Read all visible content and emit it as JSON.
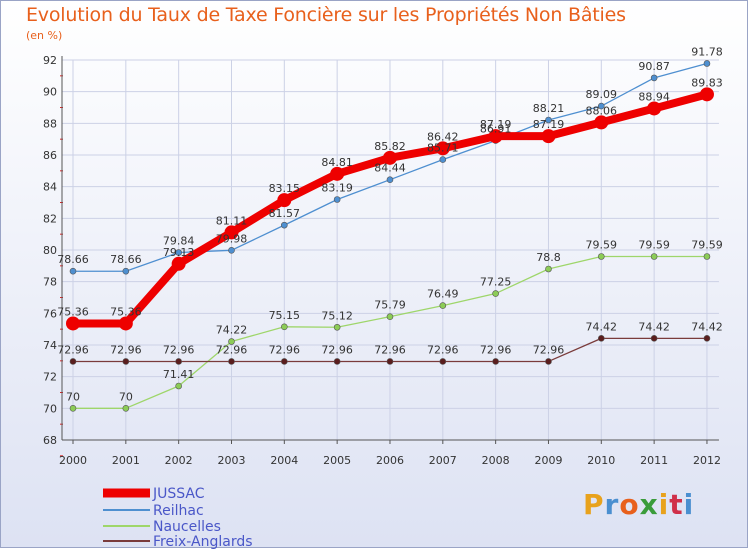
{
  "chart_data": {
    "type": "line",
    "title": "Evolution du Taux de Taxe Foncière sur les Propriétés Non Bâties",
    "subtitle": "(en %)",
    "categories": [
      "2000",
      "2001",
      "2002",
      "2003",
      "2004",
      "2005",
      "2006",
      "2007",
      "2008",
      "2009",
      "2010",
      "2011",
      "2012"
    ],
    "ylim": [
      68,
      92
    ],
    "yticks": [
      68,
      70,
      72,
      74,
      76,
      78,
      80,
      82,
      84,
      86,
      88,
      90,
      92
    ],
    "series": [
      {
        "name": "Reilhac",
        "color": "#4e8fd0",
        "point_color": "#4e8fd0",
        "values": [
          78.66,
          78.66,
          79.84,
          79.98,
          81.57,
          83.19,
          84.44,
          85.71,
          86.91,
          88.21,
          89.09,
          90.87,
          91.78
        ],
        "labels": [
          "78.66",
          "78.66",
          "79.84",
          "79.98",
          "81.57",
          "83.19",
          "84.44",
          "85.71",
          "86.91",
          "88.21",
          "89.09",
          "90.87",
          "91.78"
        ],
        "width": 1.3,
        "marker": 3
      },
      {
        "name": "Naucelles",
        "color": "#9ed66a",
        "point_color": "#8ccc57",
        "values": [
          70,
          70,
          71.41,
          74.22,
          75.15,
          75.12,
          75.79,
          76.49,
          77.25,
          78.8,
          79.59,
          79.59,
          79.59
        ],
        "labels": [
          "70",
          "70",
          "71.41",
          "74.22",
          "75.15",
          "75.12",
          "75.79",
          "76.49",
          "77.25",
          "78.8",
          "79.59",
          "79.59",
          "79.59"
        ],
        "width": 1.3,
        "marker": 3
      },
      {
        "name": "Freix-Anglards",
        "color": "#7a3b3b",
        "point_color": "#5a1e1e",
        "values": [
          72.96,
          72.96,
          72.96,
          72.96,
          72.96,
          72.96,
          72.96,
          72.96,
          72.96,
          72.96,
          74.42,
          74.42,
          74.42
        ],
        "labels": [
          "72.96",
          "72.96",
          "72.96",
          "72.96",
          "72.96",
          "72.96",
          "72.96",
          "72.96",
          "72.96",
          "72.96",
          "74.42",
          "74.42",
          "74.42"
        ],
        "width": 1.3,
        "marker": 3
      },
      {
        "name": "JUSSAC",
        "color": "#ee0000",
        "point_color": "#ee0000",
        "values": [
          75.36,
          75.36,
          79.13,
          81.11,
          83.15,
          84.81,
          85.82,
          86.42,
          87.19,
          87.19,
          88.06,
          88.94,
          89.83
        ],
        "labels": [
          "75.36",
          "75.36",
          "79.13",
          "81.11",
          "83.15",
          "84.81",
          "85.82",
          "86.42",
          "87.19",
          "87.19",
          "88.06",
          "88.94",
          "89.83"
        ],
        "width": 8,
        "marker": 7
      }
    ],
    "legend": [
      "JUSSAC",
      "Reilhac",
      "Naucelles",
      "Freix-Anglards"
    ],
    "legend_position": "bottom-left"
  },
  "logo": {
    "text": "Proxiti",
    "colors": [
      "#e8a21c",
      "#4a8fd0",
      "#e8601c",
      "#3a9c3a",
      "#e8a21c",
      "#d0304a",
      "#4a8fd0"
    ]
  }
}
